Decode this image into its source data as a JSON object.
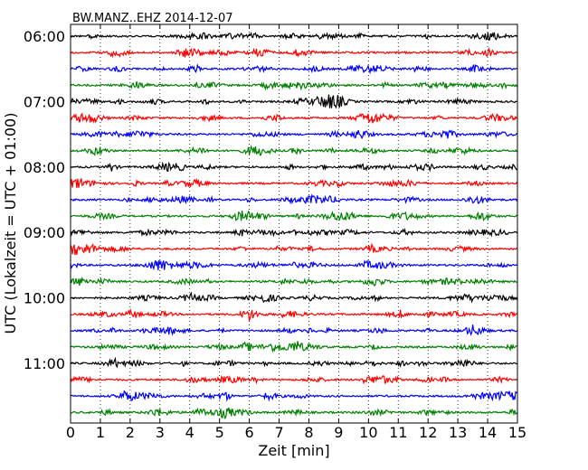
{
  "chart_data": {
    "type": "line",
    "title": "BW.MANZ..EHZ 2014-12-07",
    "xlabel": "Zeit  [min]",
    "ylabel": "UTC (Lokalzeit = UTC + 01:00)",
    "xlim": [
      0,
      15
    ],
    "x_ticks": [
      "0",
      "1",
      "2",
      "3",
      "4",
      "5",
      "6",
      "7",
      "8",
      "9",
      "10",
      "11",
      "12",
      "13",
      "14",
      "15"
    ],
    "y_tick_labels": [
      "06:00",
      "07:00",
      "08:00",
      "09:00",
      "10:00",
      "11:00"
    ],
    "grid": "vertical dotted",
    "trace_colors": [
      "#000000",
      "#ff0000",
      "#0000ff",
      "#008000"
    ],
    "series": [
      {
        "start": "06:00",
        "color": "#000000"
      },
      {
        "start": "06:15",
        "color": "#ff0000"
      },
      {
        "start": "06:30",
        "color": "#0000ff"
      },
      {
        "start": "06:45",
        "color": "#008000"
      },
      {
        "start": "07:00",
        "color": "#000000"
      },
      {
        "start": "07:15",
        "color": "#ff0000"
      },
      {
        "start": "07:30",
        "color": "#0000ff"
      },
      {
        "start": "07:45",
        "color": "#008000"
      },
      {
        "start": "08:00",
        "color": "#000000"
      },
      {
        "start": "08:15",
        "color": "#ff0000"
      },
      {
        "start": "08:30",
        "color": "#0000ff"
      },
      {
        "start": "08:45",
        "color": "#008000"
      },
      {
        "start": "09:00",
        "color": "#000000"
      },
      {
        "start": "09:15",
        "color": "#ff0000"
      },
      {
        "start": "09:30",
        "color": "#0000ff"
      },
      {
        "start": "09:45",
        "color": "#008000"
      },
      {
        "start": "10:00",
        "color": "#000000"
      },
      {
        "start": "10:15",
        "color": "#ff0000"
      },
      {
        "start": "10:30",
        "color": "#0000ff"
      },
      {
        "start": "10:45",
        "color": "#008000"
      },
      {
        "start": "11:00",
        "color": "#000000"
      },
      {
        "start": "11:15",
        "color": "#ff0000"
      },
      {
        "start": "11:30",
        "color": "#0000ff"
      },
      {
        "start": "11:45",
        "color": "#008000"
      }
    ]
  }
}
